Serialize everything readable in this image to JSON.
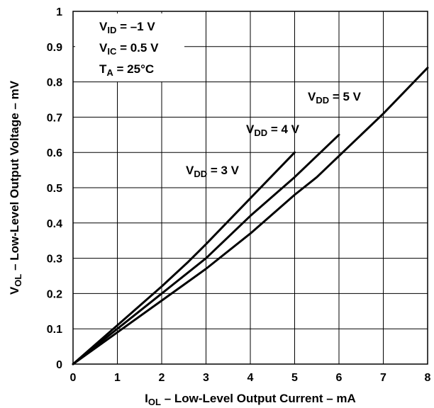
{
  "chart_data": {
    "type": "line",
    "xlabel": {
      "main": "I",
      "sub": "OL",
      "rest": " – Low-Level Output Current – mA"
    },
    "ylabel": {
      "main": "V",
      "sub": "OL",
      "rest": " – Low-Level Output Voltage – mV"
    },
    "xlim": [
      0,
      8
    ],
    "ylim": [
      0,
      1
    ],
    "x_ticks": [
      "0",
      "1",
      "2",
      "3",
      "4",
      "5",
      "6",
      "7",
      "8"
    ],
    "y_ticks": [
      "0",
      "0.1",
      "0.2",
      "0.3",
      "0.4",
      "0.5",
      "0.6",
      "0.7",
      "0.8",
      "0.9",
      "1"
    ],
    "grid": true,
    "conditions": [
      {
        "main": "V",
        "sub": "ID",
        "rest": " = –1 V"
      },
      {
        "main": "V",
        "sub": "IC",
        "rest": " = 0.5 V"
      },
      {
        "main": "T",
        "sub": "A",
        "rest": " = 25°C"
      }
    ],
    "series": [
      {
        "label": {
          "main": "V",
          "sub": "DD",
          "rest": " = 3 V"
        },
        "x": [
          0,
          1,
          2,
          2.6,
          3,
          4,
          5
        ],
        "y": [
          0,
          0.11,
          0.22,
          0.29,
          0.34,
          0.47,
          0.6
        ]
      },
      {
        "label": {
          "main": "V",
          "sub": "DD",
          "rest": " = 4 V"
        },
        "x": [
          0,
          1,
          2,
          3,
          4,
          5,
          6
        ],
        "y": [
          0,
          0.1,
          0.2,
          0.3,
          0.42,
          0.53,
          0.65
        ]
      },
      {
        "label": {
          "main": "V",
          "sub": "DD",
          "rest": " = 5 V"
        },
        "x": [
          0,
          1,
          2,
          3,
          4,
          5,
          5.5,
          6,
          7,
          8
        ],
        "y": [
          0,
          0.09,
          0.18,
          0.27,
          0.37,
          0.48,
          0.53,
          0.59,
          0.71,
          0.84
        ]
      }
    ]
  }
}
